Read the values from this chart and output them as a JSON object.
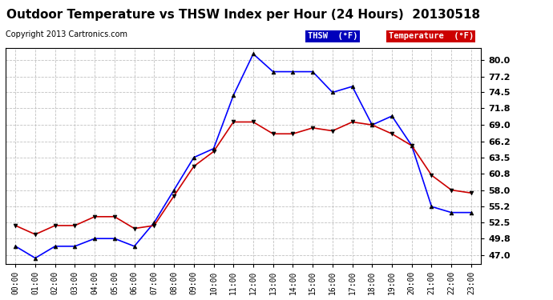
{
  "title": "Outdoor Temperature vs THSW Index per Hour (24 Hours)  20130518",
  "copyright": "Copyright 2013 Cartronics.com",
  "yticks": [
    47.0,
    49.8,
    52.5,
    55.2,
    58.0,
    60.8,
    63.5,
    66.2,
    69.0,
    71.8,
    74.5,
    77.2,
    80.0
  ],
  "ylim": [
    45.5,
    82.0
  ],
  "hours": [
    "00:00",
    "01:00",
    "02:00",
    "03:00",
    "04:00",
    "05:00",
    "06:00",
    "07:00",
    "08:00",
    "09:00",
    "10:00",
    "11:00",
    "12:00",
    "13:00",
    "14:00",
    "15:00",
    "16:00",
    "17:00",
    "18:00",
    "19:00",
    "20:00",
    "21:00",
    "22:00",
    "23:00"
  ],
  "thsw": [
    48.5,
    46.5,
    48.5,
    48.5,
    49.8,
    49.8,
    48.5,
    52.5,
    58.0,
    63.5,
    65.0,
    74.0,
    81.0,
    78.0,
    78.0,
    78.0,
    74.5,
    75.5,
    69.0,
    70.5,
    65.5,
    55.2,
    54.2,
    54.2
  ],
  "temperature": [
    52.0,
    50.5,
    52.0,
    52.0,
    53.5,
    53.5,
    51.5,
    52.0,
    57.0,
    62.0,
    64.5,
    69.5,
    69.5,
    67.5,
    67.5,
    68.5,
    68.0,
    69.5,
    69.0,
    67.5,
    65.5,
    60.5,
    58.0,
    57.5
  ],
  "thsw_color": "#0000ff",
  "temp_color": "#cc0000",
  "marker_color": "#000000",
  "bg_color": "#ffffff",
  "grid_color": "#bbbbbb",
  "title_fontsize": 11,
  "copyright_fontsize": 7,
  "tick_fontsize": 8,
  "legend_thsw_bg": "#0000bb",
  "legend_temp_bg": "#cc0000",
  "legend_thsw_label": "THSW  (°F)",
  "legend_temp_label": "Temperature  (°F)"
}
